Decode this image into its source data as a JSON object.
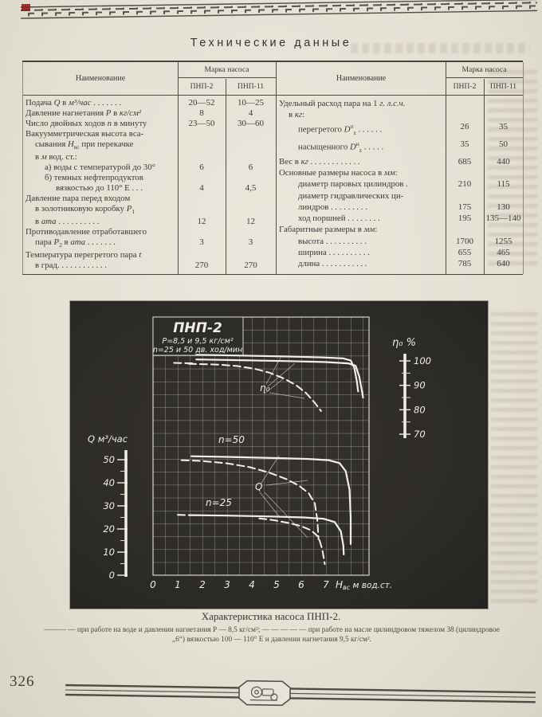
{
  "heading": "Технические данные",
  "tables": {
    "header": {
      "name": "Наименование",
      "group": "Марка насоса",
      "col1": "ПНП-2",
      "col2": "ПНП-11"
    },
    "left": {
      "rows": [
        {
          "t": "Подача *Q* в *м³/час* . . . . . . .",
          "v1": "20—52",
          "v2": "10—25"
        },
        {
          "t": "Давление нагнетания *P* в *кг/см²*",
          "v1": "8",
          "v2": "4"
        },
        {
          "t": "Число двойных ходов *n* в минуту",
          "v1": "23—50",
          "v2": "30—60"
        },
        {
          "t": "Вакуумметрическая высота вса-"
        },
        {
          "t": "сывания *H*_{вс} при перекачке",
          "i": 1
        },
        {
          "t": "в *м* вод. ст.:",
          "i": 1
        },
        {
          "t": "а) воды с температурой до 30°",
          "i": 2,
          "v1": "6",
          "v2": "6"
        },
        {
          "t": "б) темных  нефтепродуктов",
          "i": 2
        },
        {
          "t": "вязкостью до 110° Е . . .",
          "i": 3,
          "v1": "4",
          "v2": "4,5"
        },
        {
          "t": "Давление  пара  перед  входом"
        },
        {
          "t": "в золотниковую коробку *P*_{1}",
          "i": 1
        },
        {
          "t": "в *ата* . . . . . . . . . .",
          "i": 1,
          "v1": "12",
          "v2": "12"
        },
        {
          "t": "Противодавление отработавшего"
        },
        {
          "t": "пара *P*_{2} в *ата* . . . . . . .",
          "i": 1,
          "v1": "3",
          "v2": "3"
        },
        {
          "t": "Температура перегретого пара *t*"
        },
        {
          "t": "в град. . . . . . . . . . . .",
          "i": 1,
          "v1": "270",
          "v2": "270"
        }
      ]
    },
    "right": {
      "rows": [
        {
          "t": "Удельный расход пара на 1 *г. л.с.ч.*"
        },
        {
          "t": "в *кг*:",
          "i": 1
        },
        {
          "t": "перегретого *D*^{п}_{z} . . . . . .",
          "i": 2,
          "v1": "26",
          "v2": "35"
        },
        {
          "t": "насыщенного *D*^{н}_{z} . . . . .",
          "i": 2,
          "v1": "35",
          "v2": "50"
        },
        {
          "t": "Вес в *кг* . . . . . . . . . . . .",
          "v1": "685",
          "v2": "440"
        },
        {
          "t": "Основные размеры насоса в *мм*:"
        },
        {
          "t": "диаметр паровых цилиндров .",
          "i": 2,
          "v1": "210",
          "v2": "115"
        },
        {
          "t": "диаметр гидравлических ци-",
          "i": 2
        },
        {
          "t": "линдров . . . . . . . . .",
          "i": 2,
          "v1": "175",
          "v2": "130"
        },
        {
          "t": "ход поршней . . . . . . . .",
          "i": 2,
          "v1": "195",
          "v2": "135—140"
        },
        {
          "t": "Габаритные размеры в *мм*:"
        },
        {
          "t": "высота . . . . . . . . . .",
          "i": 2,
          "v1": "1700",
          "v2": "1255"
        },
        {
          "t": "ширина . . . . . . . . . .",
          "i": 2,
          "v1": "655",
          "v2": "465"
        },
        {
          "t": "длина . . . . . . . . . . .",
          "i": 2,
          "v1": "785",
          "v2": "640"
        }
      ]
    }
  },
  "chart_data": {
    "type": "line",
    "title": "ПНП-2",
    "subtitle_pressure": "P=8,5 и 9,5 кг/см²",
    "subtitle_speed": "n=25 и 50 дв. ход/мин",
    "x_axis": {
      "symbol": "H",
      "symbol_sub": "вс",
      "unit": " м вод.ст.",
      "ticks": [
        "0",
        "1",
        "2",
        "3",
        "4",
        "5",
        "6",
        "7"
      ],
      "tick_values": [
        0,
        1,
        2,
        3,
        4,
        5,
        6,
        7
      ],
      "range": [
        0,
        8.7
      ]
    },
    "q_axis": {
      "title": "Q м³/час",
      "ticks": [
        "50",
        "40",
        "30",
        "20",
        "10",
        "0"
      ],
      "values": [
        50,
        40,
        30,
        20,
        10,
        0
      ],
      "minor": [
        45,
        35,
        25,
        15,
        5
      ]
    },
    "eta_axis": {
      "title": "η₀ %",
      "ticks": [
        "100",
        "90",
        "80",
        "70"
      ],
      "values": [
        100,
        90,
        80,
        70
      ],
      "minor": [
        95,
        85,
        75
      ]
    },
    "series": [
      {
        "name": "eta-water-upper",
        "axis": "eta",
        "dashed": false,
        "points": [
          [
            1.75,
            102.5
          ],
          [
            3.5,
            102.2
          ],
          [
            5.5,
            101.8
          ],
          [
            6.9,
            101.4
          ],
          [
            7.7,
            101
          ],
          [
            8.0,
            100.2
          ],
          [
            8.15,
            97
          ],
          [
            8.25,
            91.5
          ],
          [
            8.3,
            87.5
          ]
        ]
      },
      {
        "name": "eta-water-lower",
        "axis": "eta",
        "dashed": false,
        "points": [
          [
            1.75,
            100.6
          ],
          [
            3.5,
            100.3
          ],
          [
            5.5,
            99.9
          ],
          [
            7.0,
            99.5
          ],
          [
            7.9,
            99
          ],
          [
            8.2,
            98
          ],
          [
            8.35,
            93.5
          ],
          [
            8.45,
            88
          ],
          [
            8.5,
            85
          ]
        ]
      },
      {
        "name": "eta-oil",
        "axis": "eta",
        "dashed": true,
        "points": [
          [
            1.45,
            98.8
          ],
          [
            2.6,
            98.5
          ],
          [
            3.4,
            97.9
          ],
          [
            4.1,
            96.8
          ],
          [
            4.7,
            95.2
          ],
          [
            5.3,
            92.8
          ],
          [
            5.8,
            90
          ],
          [
            6.2,
            86.8
          ],
          [
            6.55,
            82.8
          ],
          [
            6.8,
            79.5
          ]
        ]
      },
      {
        "name": "eta-oil-stub",
        "axis": "eta",
        "dashed": true,
        "points": [
          [
            0.85,
            99.2
          ],
          [
            1.7,
            99.0
          ]
        ]
      },
      {
        "name": "Q-n50-water",
        "axis": "q",
        "dashed": false,
        "points": [
          [
            1.55,
            51.5
          ],
          [
            3,
            51.2
          ],
          [
            5,
            50.7
          ],
          [
            6.3,
            50.3
          ],
          [
            7.1,
            49.8
          ],
          [
            7.55,
            48.5
          ],
          [
            7.8,
            45
          ],
          [
            7.95,
            37
          ],
          [
            8.0,
            25
          ],
          [
            8.0,
            13.5
          ]
        ]
      },
      {
        "name": "Q-n50-oil",
        "axis": "q",
        "dashed": true,
        "points": [
          [
            1.15,
            49.8
          ],
          [
            2,
            49.4
          ],
          [
            3,
            48.4
          ],
          [
            3.9,
            46.8
          ],
          [
            4.7,
            44.4
          ],
          [
            5.4,
            41.6
          ],
          [
            5.9,
            38.8
          ],
          [
            6.3,
            35.5
          ],
          [
            6.55,
            31
          ],
          [
            6.65,
            24
          ],
          [
            6.7,
            15.5
          ]
        ]
      },
      {
        "name": "Q-n25-water",
        "axis": "q",
        "dashed": false,
        "points": [
          [
            1.45,
            26
          ],
          [
            3,
            25.8
          ],
          [
            4.8,
            25.4
          ],
          [
            6.1,
            25
          ],
          [
            6.9,
            24.4
          ],
          [
            7.35,
            23
          ],
          [
            7.6,
            19
          ],
          [
            7.7,
            13
          ],
          [
            7.72,
            9
          ]
        ]
      },
      {
        "name": "Q-n25-oil",
        "axis": "q",
        "dashed": true,
        "points": [
          [
            4.3,
            24.6
          ],
          [
            4.9,
            23.8
          ],
          [
            5.5,
            22.6
          ],
          [
            6.0,
            21.2
          ],
          [
            6.4,
            19.4
          ],
          [
            6.7,
            16.5
          ],
          [
            6.85,
            11
          ],
          [
            6.95,
            4.8
          ]
        ]
      },
      {
        "name": "Q-n25-oil-stub",
        "axis": "q",
        "dashed": true,
        "points": [
          [
            1.0,
            26.1
          ],
          [
            1.55,
            26.0
          ]
        ]
      }
    ],
    "curve_labels": [
      {
        "text": "η₀",
        "x": 238,
        "y": 113
      },
      {
        "text": "n=50",
        "x": 186,
        "y": 178
      },
      {
        "text": "Q",
        "x": 232,
        "y": 237
      },
      {
        "text": "n=25",
        "x": 170,
        "y": 257
      }
    ],
    "pointer_lines": [
      [
        246,
        104,
        264,
        71
      ],
      [
        248,
        107,
        282,
        78
      ],
      [
        250,
        115,
        294,
        122
      ],
      [
        244,
        116,
        268,
        97
      ],
      [
        240,
        228,
        262,
        194
      ],
      [
        246,
        231,
        298,
        225
      ],
      [
        238,
        240,
        262,
        270
      ],
      [
        244,
        240,
        298,
        297
      ]
    ]
  },
  "figure": {
    "caption": "Характеристика насоса ПНП-2.",
    "legend": "——— — при работе на воде и давлении нагнетания Р — 8,5 кг/см²;  — — — — — при работе на масле цилиндровом тяжелом 38 (цилиндровое „6“) вязкостью 100 — 110° Е и давлении нагнетания 9,5 кг/см²."
  },
  "footer": {
    "page_number": "326"
  },
  "colors": {
    "paper": "#e7e3d8",
    "ink": "#3b3a34",
    "panel": "#2d2b27",
    "curve": "#f2f0e8",
    "red_mark": "#8e2017"
  }
}
